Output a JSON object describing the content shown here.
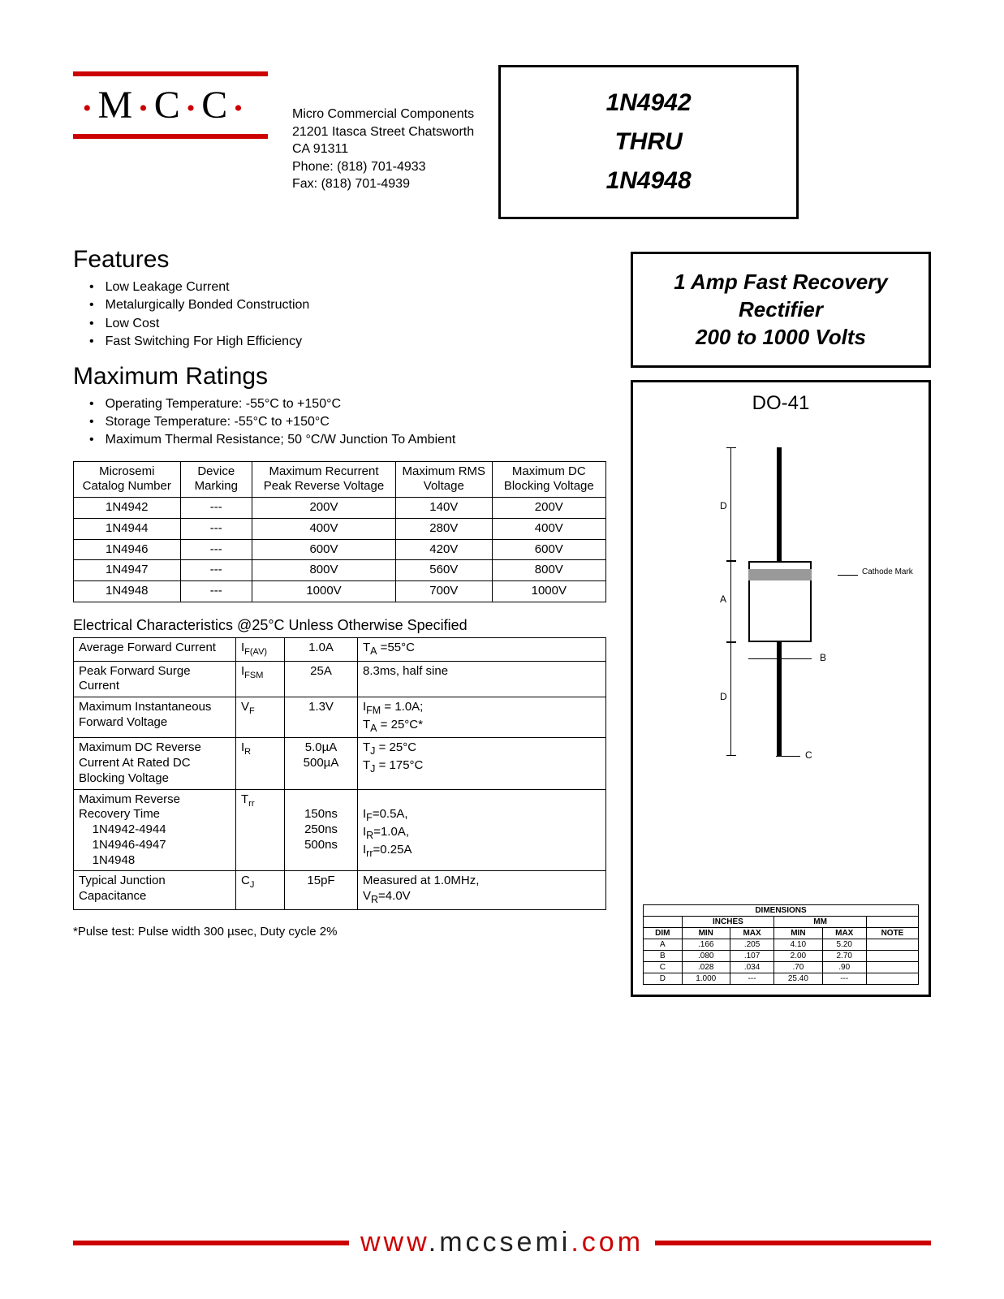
{
  "logo": {
    "text_m": "M",
    "text_c1": "C",
    "text_c2": "C"
  },
  "company": {
    "name": "Micro Commercial Components",
    "addr1": "21201 Itasca Street Chatsworth",
    "addr2": "CA 91311",
    "phone": "Phone: (818) 701-4933",
    "fax": "Fax:     (818) 701-4939"
  },
  "part": {
    "from": "1N4942",
    "thru": "THRU",
    "to": "1N4948"
  },
  "desc": {
    "l1": "1 Amp Fast Recovery",
    "l2": "Rectifier",
    "l3": "200 to 1000 Volts"
  },
  "features": {
    "title": "Features",
    "items": [
      "Low Leakage Current",
      "Metalurgically Bonded Construction",
      "Low Cost",
      "Fast Switching For High Efficiency"
    ]
  },
  "maxratings": {
    "title": "Maximum Ratings",
    "items": [
      "Operating Temperature: -55°C to +150°C",
      "Storage Temperature: -55°C to +150°C",
      "Maximum Thermal Resistance; 50 °C/W Junction To Ambient"
    ]
  },
  "table1": {
    "headers": [
      "Microsemi Catalog Number",
      "Device Marking",
      "Maximum Recurrent Peak Reverse Voltage",
      "Maximum RMS Voltage",
      "Maximum DC Blocking Voltage"
    ],
    "rows": [
      [
        "1N4942",
        "---",
        "200V",
        "140V",
        "200V"
      ],
      [
        "1N4944",
        "---",
        "400V",
        "280V",
        "400V"
      ],
      [
        "1N4946",
        "---",
        "600V",
        "420V",
        "600V"
      ],
      [
        "1N4947",
        "---",
        "800V",
        "560V",
        "800V"
      ],
      [
        "1N4948",
        "---",
        "1000V",
        "700V",
        "1000V"
      ]
    ]
  },
  "elec": {
    "title": "Electrical Characteristics @25°C Unless Otherwise Specified",
    "rows": [
      {
        "param": "Average Forward Current",
        "sym": "I",
        "sub": "F(AV)",
        "val": "1.0A",
        "cond": "T<sub>A</sub> =55°C"
      },
      {
        "param": "Peak Forward Surge Current",
        "sym": "I",
        "sub": "FSM",
        "val": "25A",
        "cond": "8.3ms, half sine"
      },
      {
        "param": "Maximum Instantaneous Forward Voltage",
        "sym": "V",
        "sub": "F",
        "val": "1.3V",
        "cond": "I<sub>FM</sub> = 1.0A;<br>T<sub>A</sub> = 25°C*"
      },
      {
        "param": "Maximum DC Reverse Current At Rated DC Blocking Voltage",
        "sym": "I",
        "sub": "R",
        "val": "5.0µA<br>500µA",
        "cond": "T<sub>J</sub> = 25°C<br>T<sub>J</sub> = 175°C"
      },
      {
        "param": "Maximum Reverse Recovery Time<br>&nbsp;&nbsp;&nbsp;&nbsp;1N4942-4944<br>&nbsp;&nbsp;&nbsp;&nbsp;1N4946-4947<br>&nbsp;&nbsp;&nbsp;&nbsp;1N4948",
        "sym": "T",
        "sub": "rr",
        "val": "<br>150ns<br>250ns<br>500ns",
        "cond": "<br>I<sub>F</sub>=0.5A,<br>I<sub>R</sub>=1.0A,<br>I<sub>rr</sub>=0.25A"
      },
      {
        "param": "Typical Junction Capacitance",
        "sym": "C",
        "sub": "J",
        "val": "15pF",
        "cond": "Measured at 1.0MHz,<br>V<sub>R</sub>=4.0V"
      }
    ],
    "note": "*Pulse test: Pulse width 300 µsec, Duty cycle 2%"
  },
  "package": {
    "title": "DO-41",
    "cathode": "Cathode Mark",
    "labels": {
      "A": "A",
      "B": "B",
      "C": "C",
      "D": "D"
    }
  },
  "dims": {
    "title": "DIMENSIONS",
    "unit1": "INCHES",
    "unit2": "MM",
    "cols": [
      "DIM",
      "MIN",
      "MAX",
      "MIN",
      "MAX",
      "NOTE"
    ],
    "rows": [
      [
        "A",
        ".166",
        ".205",
        "4.10",
        "5.20",
        ""
      ],
      [
        "B",
        ".080",
        ".107",
        "2.00",
        "2.70",
        ""
      ],
      [
        "C",
        ".028",
        ".034",
        ".70",
        ".90",
        ""
      ],
      [
        "D",
        "1.000",
        "---",
        "25.40",
        "---",
        ""
      ]
    ]
  },
  "footer": {
    "w1": "www",
    "w2": ".",
    "w3": "mccsemi",
    "w4": ".",
    "w5": "com"
  }
}
